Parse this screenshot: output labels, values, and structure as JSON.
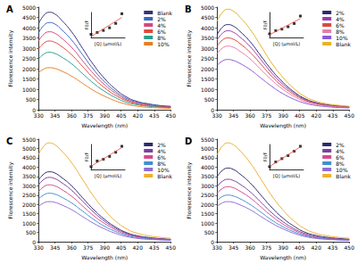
{
  "chart_data": [
    {
      "type": "line",
      "title": "A",
      "x_label": "Wavelength (nm)",
      "y_label": "Florescence intensity",
      "x": [
        330,
        335,
        340,
        345,
        350,
        360,
        370,
        380,
        390,
        400,
        410,
        420,
        430,
        440,
        450
      ],
      "xlim": [
        330,
        450
      ],
      "xticks": [
        330,
        345,
        360,
        375,
        390,
        405,
        420,
        435,
        450
      ],
      "ylim": [
        0,
        5000
      ],
      "yticks": [
        0,
        500,
        1000,
        1500,
        2000,
        2500,
        3000,
        3500,
        4000,
        4500,
        5000
      ],
      "grid": false,
      "legend": "upper right",
      "series": [
        {
          "name": "Blank",
          "color": "#33337a",
          "values": [
            4180,
            4610,
            4750,
            4660,
            4420,
            3800,
            2990,
            2190,
            1520,
            1000,
            620,
            400,
            290,
            210,
            170
          ]
        },
        {
          "name": "2%",
          "color": "#3a66c4",
          "values": [
            3740,
            4120,
            4250,
            4170,
            3950,
            3400,
            2680,
            1960,
            1360,
            890,
            550,
            360,
            260,
            190,
            150
          ]
        },
        {
          "name": "4%",
          "color": "#d9477a",
          "values": [
            3340,
            3690,
            3800,
            3720,
            3530,
            3040,
            2390,
            1750,
            1220,
            800,
            490,
            320,
            230,
            170,
            130
          ]
        },
        {
          "name": "6%",
          "color": "#e04a3a",
          "values": [
            2950,
            3250,
            3350,
            3280,
            3120,
            2680,
            2110,
            1540,
            1070,
            700,
            440,
            280,
            200,
            150,
            120
          ]
        },
        {
          "name": "8%",
          "color": "#2a9d8f",
          "values": [
            2460,
            2720,
            2800,
            2740,
            2600,
            2240,
            1760,
            1290,
            900,
            590,
            360,
            240,
            170,
            130,
            100
          ]
        },
        {
          "name": "10%",
          "color": "#e67e22",
          "values": [
            1800,
            1990,
            2050,
            2010,
            1910,
            1640,
            1290,
            940,
            660,
            430,
            270,
            170,
            120,
            90,
            70
          ]
        }
      ]
    },
    {
      "type": "scatter",
      "x_label": "[Q] (μmol/L)",
      "y_label": "F0/F",
      "xlim": [
        0,
        110
      ],
      "ylim": [
        0.8,
        2.4
      ],
      "tick_labels": false,
      "series": [
        {
          "type": "scatter",
          "marker": "square",
          "color": "#000000",
          "x": [
            0,
            20,
            40,
            60,
            80,
            100
          ],
          "values": [
            1.0,
            1.12,
            1.25,
            1.42,
            1.7,
            2.32
          ]
        },
        {
          "type": "line",
          "line_style": "solid",
          "color": "#e8463a",
          "x": [
            0,
            100
          ],
          "values": [
            0.86,
            2.08
          ]
        }
      ]
    },
    {
      "type": "line",
      "title": "B",
      "x_label": "Wavelength (nm)",
      "y_label": "Florescence intensity",
      "x": [
        330,
        335,
        340,
        345,
        350,
        360,
        370,
        380,
        390,
        400,
        410,
        420,
        430,
        440,
        450
      ],
      "xlim": [
        330,
        450
      ],
      "xticks": [
        330,
        345,
        360,
        375,
        390,
        405,
        420,
        435,
        450
      ],
      "ylim": [
        0,
        5000
      ],
      "yticks": [
        0,
        500,
        1000,
        1500,
        2000,
        2500,
        3000,
        3500,
        4000,
        4500,
        5000
      ],
      "grid": false,
      "legend": "upper right",
      "series": [
        {
          "name": "2%",
          "color": "#2b2b6e",
          "values": [
            3650,
            4030,
            4150,
            4070,
            3860,
            3320,
            2610,
            1910,
            1330,
            870,
            540,
            350,
            250,
            190,
            150
          ]
        },
        {
          "name": "4%",
          "color": "#9c3bb0",
          "values": [
            3390,
            3730,
            3850,
            3770,
            3580,
            3080,
            2430,
            1770,
            1230,
            810,
            500,
            330,
            230,
            170,
            130
          ]
        },
        {
          "name": "6%",
          "color": "#d94a3a",
          "values": [
            3080,
            3400,
            3500,
            3430,
            3260,
            2800,
            2210,
            1610,
            1120,
            740,
            460,
            300,
            210,
            160,
            120
          ]
        },
        {
          "name": "8%",
          "color": "#e67ea8",
          "values": [
            2730,
            3010,
            3100,
            3040,
            2880,
            2480,
            1950,
            1430,
            990,
            650,
            400,
            260,
            190,
            140,
            110
          ]
        },
        {
          "name": "10%",
          "color": "#8a5ad6",
          "values": [
            2160,
            2380,
            2450,
            2400,
            2280,
            1960,
            1540,
            1130,
            780,
            510,
            320,
            210,
            150,
            110,
            90
          ]
        },
        {
          "name": "Blank",
          "color": "#e6b422",
          "values": [
            4310,
            4750,
            4900,
            4800,
            4560,
            3920,
            3090,
            2250,
            1570,
            1030,
            640,
            420,
            290,
            220,
            170
          ]
        }
      ]
    },
    {
      "type": "scatter",
      "x_label": "[Q] (μmol/L)",
      "y_label": "F0/F",
      "xlim": [
        0,
        110
      ],
      "ylim": [
        0.8,
        2.2
      ],
      "tick_labels": false,
      "series": [
        {
          "type": "scatter",
          "marker": "square",
          "color": "#000000",
          "x": [
            0,
            20,
            40,
            60,
            80,
            100
          ],
          "values": [
            1.0,
            1.18,
            1.27,
            1.4,
            1.58,
            2.0
          ]
        },
        {
          "type": "line",
          "line_style": "solid",
          "color": "#e8463a",
          "x": [
            0,
            100
          ],
          "values": [
            0.95,
            1.86
          ]
        }
      ]
    },
    {
      "type": "line",
      "title": "C",
      "x_label": "Wavelength (nm)",
      "y_label": "Florescence intensity",
      "x": [
        330,
        335,
        340,
        345,
        350,
        360,
        370,
        380,
        390,
        400,
        410,
        420,
        430,
        440,
        450
      ],
      "xlim": [
        330,
        450
      ],
      "xticks": [
        330,
        345,
        360,
        375,
        390,
        405,
        420,
        435,
        450
      ],
      "ylim": [
        0,
        5500
      ],
      "yticks": [
        0,
        500,
        1000,
        1500,
        2000,
        2500,
        3000,
        3500,
        4000,
        4500,
        5000,
        5500
      ],
      "grid": false,
      "legend": "upper right",
      "series": [
        {
          "name": "2%",
          "color": "#2b2b6e",
          "values": [
            3300,
            3640,
            3750,
            3680,
            3490,
            3000,
            2360,
            1730,
            1200,
            790,
            490,
            320,
            230,
            170,
            130
          ]
        },
        {
          "name": "4%",
          "color": "#7b3fa0",
          "values": [
            3040,
            3350,
            3450,
            3380,
            3210,
            2760,
            2170,
            1590,
            1100,
            720,
            450,
            290,
            210,
            160,
            120
          ]
        },
        {
          "name": "6%",
          "color": "#d64a8c",
          "values": [
            2680,
            2960,
            3050,
            2990,
            2840,
            2440,
            1920,
            1400,
            980,
            640,
            400,
            260,
            180,
            140,
            110
          ]
        },
        {
          "name": "8%",
          "color": "#3f8fd0",
          "values": [
            2290,
            2520,
            2600,
            2550,
            2420,
            2080,
            1640,
            1200,
            830,
            550,
            340,
            220,
            160,
            120,
            90
          ]
        },
        {
          "name": "10%",
          "color": "#8e6bd6",
          "values": [
            1890,
            2090,
            2150,
            2110,
            2000,
            1720,
            1350,
            990,
            690,
            450,
            280,
            180,
            130,
            100,
            80
          ]
        },
        {
          "name": "Blank",
          "color": "#f0b030",
          "values": [
            4660,
            5140,
            5300,
            5190,
            4930,
            4240,
            3340,
            2440,
            1700,
            1110,
            690,
            450,
            320,
            240,
            190
          ]
        }
      ]
    },
    {
      "type": "scatter",
      "x_label": "[Q] (μmol/L)",
      "y_label": "F0/F",
      "xlim": [
        0,
        110
      ],
      "ylim": [
        0.8,
        2.6
      ],
      "tick_labels": false,
      "series": [
        {
          "type": "scatter",
          "marker": "square",
          "color": "#000000",
          "x": [
            0,
            20,
            40,
            60,
            80,
            100
          ],
          "values": [
            1.0,
            1.41,
            1.54,
            1.74,
            2.04,
            2.47
          ]
        },
        {
          "type": "line",
          "line_style": "solid",
          "color": "#e8463a",
          "x": [
            0,
            100
          ],
          "values": [
            1.03,
            2.38
          ]
        }
      ]
    },
    {
      "type": "line",
      "title": "D",
      "x_label": "Wavelength (nm)",
      "y_label": "Florescence intensity",
      "x": [
        330,
        335,
        340,
        345,
        350,
        360,
        370,
        380,
        390,
        400,
        410,
        420,
        430,
        440,
        450
      ],
      "xlim": [
        330,
        450
      ],
      "xticks": [
        330,
        345,
        360,
        375,
        390,
        405,
        420,
        435,
        450
      ],
      "ylim": [
        0,
        5500
      ],
      "yticks": [
        0,
        500,
        1000,
        1500,
        2000,
        2500,
        3000,
        3500,
        4000,
        4500,
        5000,
        5500
      ],
      "grid": false,
      "legend": "upper right",
      "series": [
        {
          "name": "2%",
          "color": "#2b2b6e",
          "values": [
            3480,
            3830,
            3950,
            3870,
            3670,
            3160,
            2490,
            1820,
            1260,
            830,
            510,
            340,
            240,
            180,
            140
          ]
        },
        {
          "name": "4%",
          "color": "#7b3fa0",
          "values": [
            2950,
            3250,
            3350,
            3280,
            3120,
            2680,
            2110,
            1540,
            1070,
            700,
            440,
            280,
            200,
            150,
            120
          ]
        },
        {
          "name": "6%",
          "color": "#d64a8c",
          "values": [
            2600,
            2860,
            2950,
            2890,
            2740,
            2360,
            1860,
            1360,
            940,
            620,
            380,
            250,
            180,
            130,
            100
          ]
        },
        {
          "name": "8%",
          "color": "#3f8fd0",
          "values": [
            2200,
            2430,
            2500,
            2450,
            2330,
            2000,
            1580,
            1150,
            800,
            530,
            330,
            210,
            150,
            110,
            90
          ]
        },
        {
          "name": "10%",
          "color": "#8e6bd6",
          "values": [
            1890,
            2090,
            2150,
            2110,
            2000,
            1720,
            1350,
            990,
            690,
            450,
            280,
            180,
            130,
            100,
            80
          ]
        },
        {
          "name": "Blank",
          "color": "#f0b030",
          "values": [
            4660,
            5140,
            5300,
            5190,
            4930,
            4240,
            3340,
            2440,
            1700,
            1110,
            690,
            450,
            320,
            240,
            190
          ]
        }
      ]
    },
    {
      "type": "scatter",
      "x_label": "[Q] (μmol/L)",
      "y_label": "F0/F",
      "xlim": [
        0,
        110
      ],
      "ylim": [
        0.8,
        2.6
      ],
      "tick_labels": false,
      "series": [
        {
          "type": "scatter",
          "marker": "square",
          "color": "#000000",
          "x": [
            0,
            20,
            40,
            60,
            80,
            100
          ],
          "values": [
            1.0,
            1.34,
            1.58,
            1.8,
            2.12,
            2.47
          ]
        },
        {
          "type": "line",
          "line_style": "solid",
          "color": "#e8463a",
          "x": [
            0,
            100
          ],
          "values": [
            1.01,
            2.43
          ]
        }
      ]
    }
  ]
}
